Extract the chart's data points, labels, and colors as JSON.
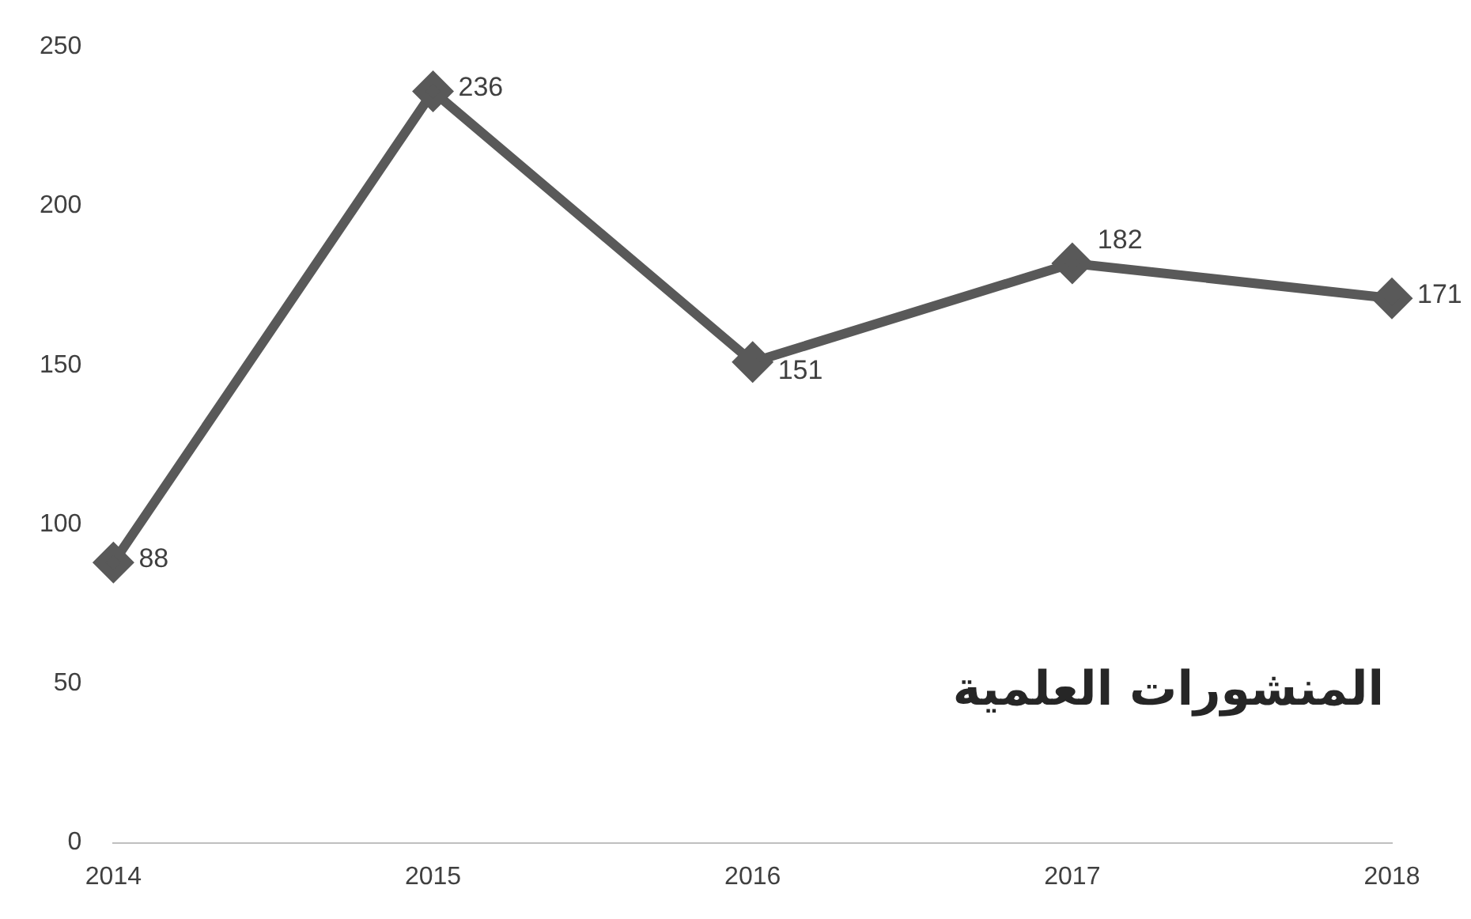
{
  "chart_data": {
    "type": "line",
    "categories": [
      "2014",
      "2015",
      "2016",
      "2017",
      "2018"
    ],
    "series": [
      {
        "color": "#595959",
        "values": [
          88,
          236,
          151,
          182,
          171
        ]
      }
    ],
    "ylim": [
      0,
      250
    ],
    "yticks": [
      0,
      50,
      100,
      150,
      200,
      250
    ],
    "grid": false,
    "legend": false,
    "marker": "diamond",
    "line_style": "solid",
    "data_labels": true,
    "annotations": [
      "المنشورات العلمية"
    ]
  }
}
